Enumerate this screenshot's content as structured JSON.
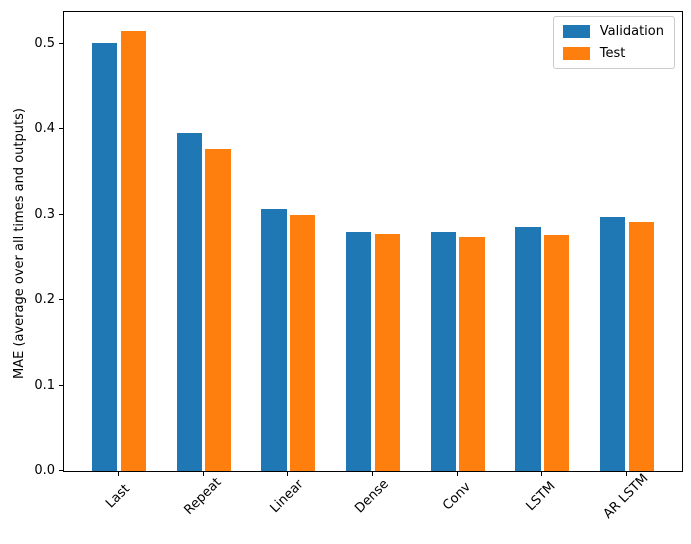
{
  "chart_data": {
    "type": "bar",
    "title": "",
    "xlabel": "",
    "ylabel": "MAE (average over all times and outputs)",
    "categories": [
      "Last",
      "Repeat",
      "Linear",
      "Dense",
      "Conv",
      "LSTM",
      "AR LSTM"
    ],
    "series": [
      {
        "name": "Validation",
        "color": "#1f77b4",
        "values": [
          0.501,
          0.395,
          0.306,
          0.28,
          0.28,
          0.286,
          0.297
        ]
      },
      {
        "name": "Test",
        "color": "#ff7f0e",
        "values": [
          0.515,
          0.377,
          0.299,
          0.277,
          0.274,
          0.276,
          0.291
        ]
      }
    ],
    "yticks": [
      0.0,
      0.1,
      0.2,
      0.3,
      0.4,
      0.5
    ],
    "ylim": [
      0,
      0.537
    ],
    "xlim": [
      -0.652,
      6.652
    ],
    "bar_width": 0.3,
    "offsets": [
      -0.17,
      0.17
    ],
    "xtick_rotation": 45,
    "grid": false,
    "legend_position": "upper right"
  }
}
